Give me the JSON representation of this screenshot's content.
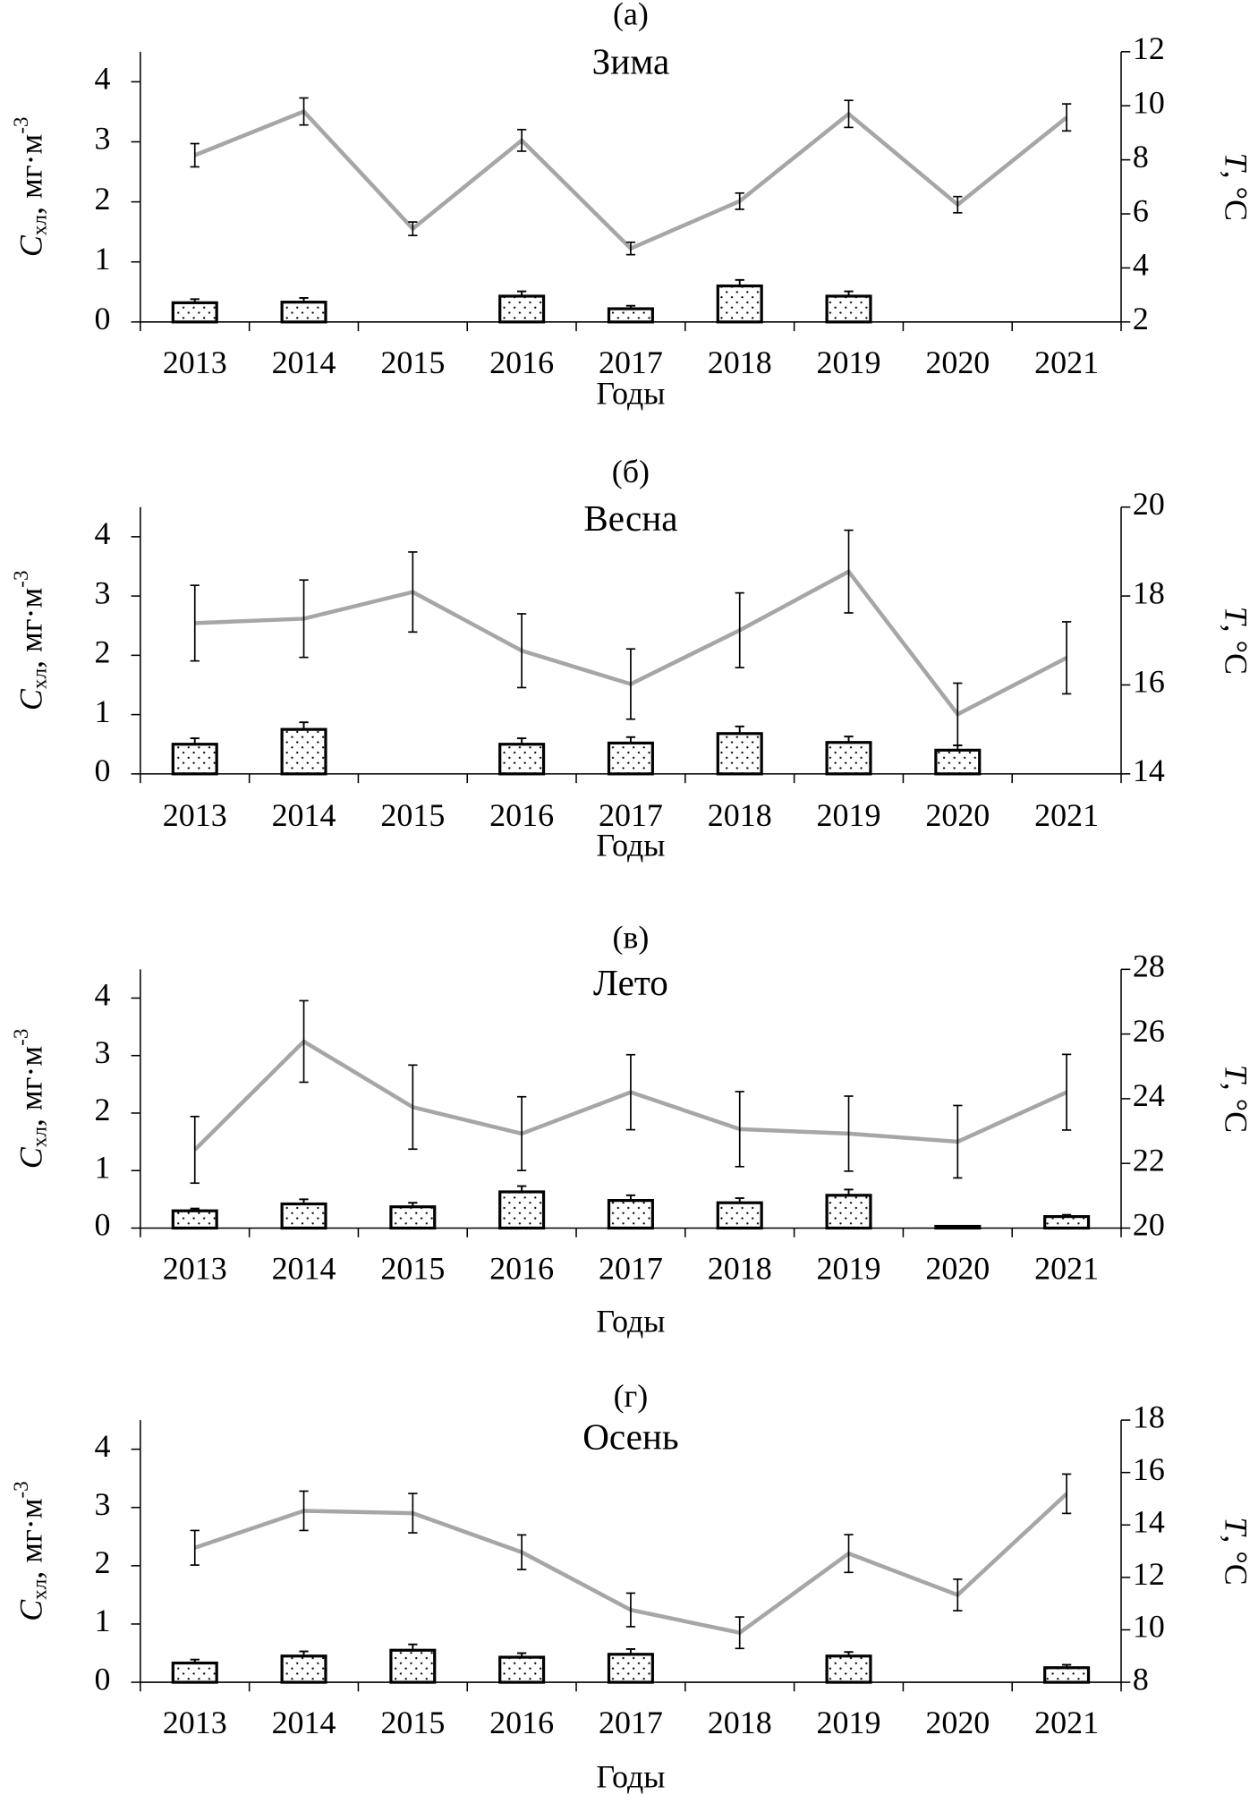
{
  "chart_data": [
    {
      "type": "combo",
      "panel_label": "(а)",
      "title": "Зима",
      "x_label": "Годы",
      "y_label": [
        "C",
        "хл",
        ", мг·м",
        "-3"
      ],
      "y2_label": [
        "T",
        ", °C"
      ],
      "categories": [
        "2013",
        "2014",
        "2015",
        "2016",
        "2017",
        "2018",
        "2019",
        "2020",
        "2021"
      ],
      "ylim": [
        0,
        4.5
      ],
      "yticks": [
        0,
        1,
        2,
        3,
        4
      ],
      "y2lim": [
        2,
        12
      ],
      "y2ticks": [
        2,
        4,
        6,
        8,
        10,
        12
      ],
      "series": [
        {
          "type": "bar",
          "color": "#000000",
          "values": [
            0.32,
            0.33,
            null,
            0.43,
            0.22,
            0.6,
            0.43,
            null,
            null
          ],
          "errors": [
            0.06,
            0.07,
            null,
            0.08,
            0.05,
            0.1,
            0.08,
            null,
            null
          ]
        },
        {
          "type": "line",
          "axis": "y2",
          "color": "#a6a6a6",
          "values": [
            8.17,
            9.79,
            5.45,
            8.72,
            4.72,
            6.47,
            9.7,
            6.34,
            9.57
          ],
          "errors": [
            0.43,
            0.5,
            0.25,
            0.4,
            0.23,
            0.3,
            0.5,
            0.3,
            0.5
          ]
        }
      ]
    },
    {
      "type": "combo",
      "panel_label": "(б)",
      "title": "Весна",
      "x_label": "Годы",
      "y_label": [
        "C",
        "хл",
        ", мг·м",
        "-3"
      ],
      "y2_label": [
        "T",
        ", °C"
      ],
      "categories": [
        "2013",
        "2014",
        "2015",
        "2016",
        "2017",
        "2018",
        "2019",
        "2020",
        "2021"
      ],
      "ylim": [
        0,
        4.5
      ],
      "yticks": [
        0,
        1,
        2,
        3,
        4
      ],
      "y2lim": [
        14,
        20
      ],
      "y2ticks": [
        14,
        16,
        18,
        20
      ],
      "series": [
        {
          "type": "bar",
          "color": "#000000",
          "values": [
            0.5,
            0.75,
            null,
            0.5,
            0.52,
            0.68,
            0.53,
            0.4,
            null
          ],
          "errors": [
            0.1,
            0.12,
            null,
            0.1,
            0.1,
            0.12,
            0.1,
            0.08,
            null
          ]
        },
        {
          "type": "line",
          "axis": "y2",
          "color": "#a6a6a6",
          "values": [
            17.39,
            17.49,
            18.09,
            16.77,
            16.02,
            17.23,
            18.55,
            15.34,
            16.61
          ],
          "errors": [
            0.85,
            0.87,
            0.9,
            0.83,
            0.79,
            0.84,
            0.93,
            0.7,
            0.81
          ]
        }
      ]
    },
    {
      "type": "combo",
      "panel_label": "(в)",
      "title": "Лето",
      "x_label": "Годы",
      "y_label": [
        "C",
        "хл",
        ", мг·м",
        "-3"
      ],
      "y2_label": [
        "T",
        ", °C"
      ],
      "categories": [
        "2013",
        "2014",
        "2015",
        "2016",
        "2017",
        "2018",
        "2019",
        "2020",
        "2021"
      ],
      "ylim": [
        0,
        4.5
      ],
      "yticks": [
        0,
        1,
        2,
        3,
        4
      ],
      "y2lim": [
        20,
        28
      ],
      "y2ticks": [
        20,
        22,
        24,
        26,
        28
      ],
      "series": [
        {
          "type": "bar",
          "color": "#000000",
          "values": [
            0.3,
            0.42,
            0.37,
            0.63,
            0.48,
            0.44,
            0.57,
            0.03,
            0.2
          ],
          "errors": [
            0.04,
            0.08,
            0.07,
            0.1,
            0.09,
            0.08,
            0.1,
            0,
            0.03
          ]
        },
        {
          "type": "line",
          "axis": "y2",
          "color": "#a6a6a6",
          "values": [
            22.42,
            25.77,
            23.74,
            22.92,
            24.2,
            23.06,
            22.92,
            22.67,
            24.2
          ],
          "errors": [
            1.03,
            1.26,
            1.3,
            1.14,
            1.16,
            1.16,
            1.16,
            1.12,
            1.17
          ]
        }
      ]
    },
    {
      "type": "combo",
      "panel_label": "(г)",
      "title": "Осень",
      "x_label": "Годы",
      "y_label": [
        "C",
        "хл",
        ", мг·м",
        "-3"
      ],
      "y2_label": [
        "T",
        ", °C"
      ],
      "categories": [
        "2013",
        "2014",
        "2015",
        "2016",
        "2017",
        "2018",
        "2019",
        "2020",
        "2021"
      ],
      "ylim": [
        0,
        4.5
      ],
      "yticks": [
        0,
        1,
        2,
        3,
        4
      ],
      "y2lim": [
        8,
        18
      ],
      "y2ticks": [
        8,
        10,
        12,
        14,
        16,
        18
      ],
      "series": [
        {
          "type": "bar",
          "color": "#000000",
          "values": [
            0.33,
            0.45,
            0.55,
            0.43,
            0.48,
            null,
            0.45,
            null,
            0.25
          ],
          "errors": [
            0.06,
            0.08,
            0.1,
            0.07,
            0.09,
            null,
            0.07,
            null,
            0.05
          ]
        },
        {
          "type": "line",
          "axis": "y2",
          "color": "#a6a6a6",
          "values": [
            13.13,
            14.54,
            14.45,
            12.96,
            10.76,
            9.89,
            12.91,
            11.33,
            15.19
          ],
          "errors": [
            0.66,
            0.75,
            0.75,
            0.66,
            0.64,
            0.6,
            0.72,
            0.6,
            0.75
          ]
        }
      ]
    }
  ]
}
